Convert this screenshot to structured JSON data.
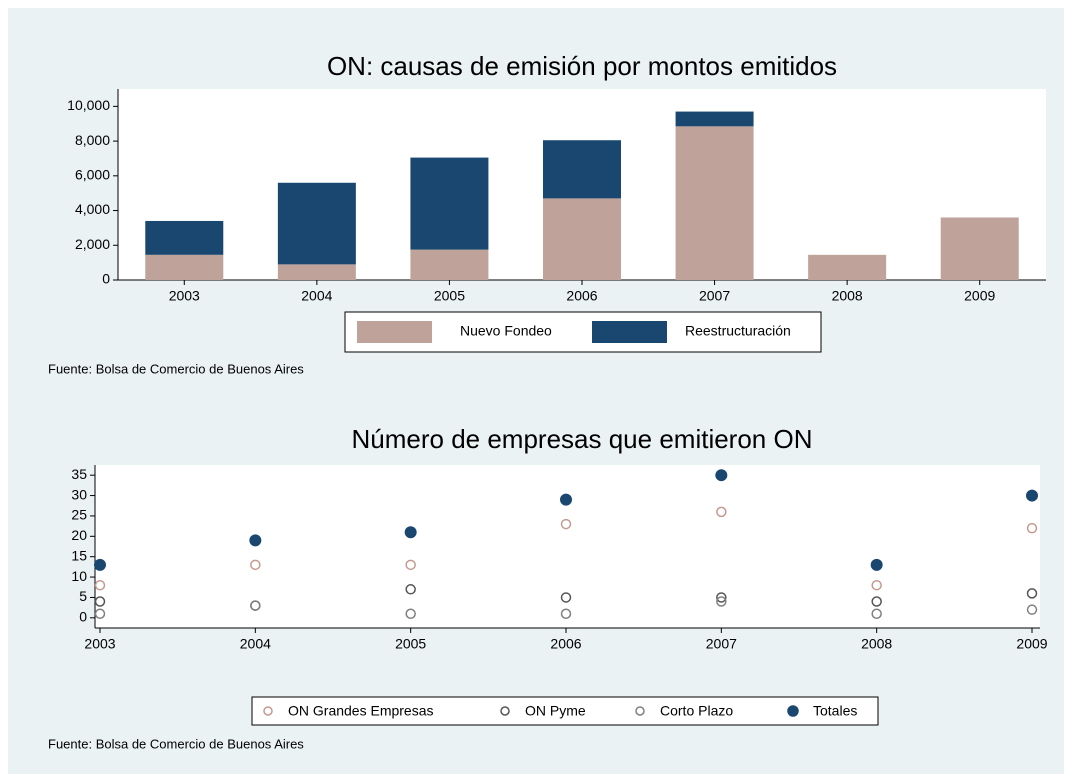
{
  "chart_data": [
    {
      "type": "bar",
      "stacked": true,
      "title": "ON: causas de emisión por montos emitidos",
      "categories": [
        "2003",
        "2004",
        "2005",
        "2006",
        "2007",
        "2008",
        "2009"
      ],
      "series": [
        {
          "name": "Nuevo Fondeo",
          "color": "#bfa39a",
          "values": [
            1450,
            900,
            1750,
            4700,
            8850,
            1450,
            3600
          ]
        },
        {
          "name": "Reestructuración",
          "color": "#1a476f",
          "values": [
            1950,
            4700,
            5300,
            3350,
            850,
            0,
            0
          ]
        }
      ],
      "ylim": [
        0,
        11000
      ],
      "yticks": [
        0,
        {
          "value": 2000,
          "label": "2,000"
        },
        {
          "value": 4000,
          "label": "4,000"
        },
        {
          "value": 6000,
          "label": "6,000"
        },
        {
          "value": 8000,
          "label": "8,000"
        },
        {
          "value": 10000,
          "label": "10,000"
        }
      ],
      "note": "Fuente: Bolsa de Comercio de Buenos Aires"
    },
    {
      "type": "scatter",
      "title": "Número de empresas que emitieron ON",
      "x": [
        2003,
        2004,
        2005,
        2006,
        2007,
        2008,
        2009
      ],
      "series": [
        {
          "name": "ON Grandes Empresas",
          "color": "#c49a90",
          "hollow": true,
          "values": [
            8,
            13,
            13,
            23,
            26,
            8,
            22
          ]
        },
        {
          "name": "ON Pyme",
          "color": "#555555",
          "hollow": true,
          "values": [
            4,
            3,
            7,
            5,
            5,
            4,
            6
          ]
        },
        {
          "name": "Corto Plazo",
          "color": "#808080",
          "hollow": true,
          "values": [
            1,
            3,
            1,
            1,
            4,
            1,
            2
          ]
        },
        {
          "name": "Totales",
          "color": "#1a476f",
          "hollow": false,
          "values": [
            13,
            19,
            21,
            29,
            35,
            13,
            30
          ]
        }
      ],
      "xlim": [
        2003,
        2009
      ],
      "xticks": [
        2003,
        2004,
        2005,
        2006,
        2007,
        2008,
        2009
      ],
      "ylim": [
        -2.5,
        37.5
      ],
      "yticks": [
        0,
        5,
        10,
        15,
        20,
        25,
        30,
        35
      ],
      "note": "Fuente: Bolsa de Comercio de Buenos Aires"
    }
  ]
}
